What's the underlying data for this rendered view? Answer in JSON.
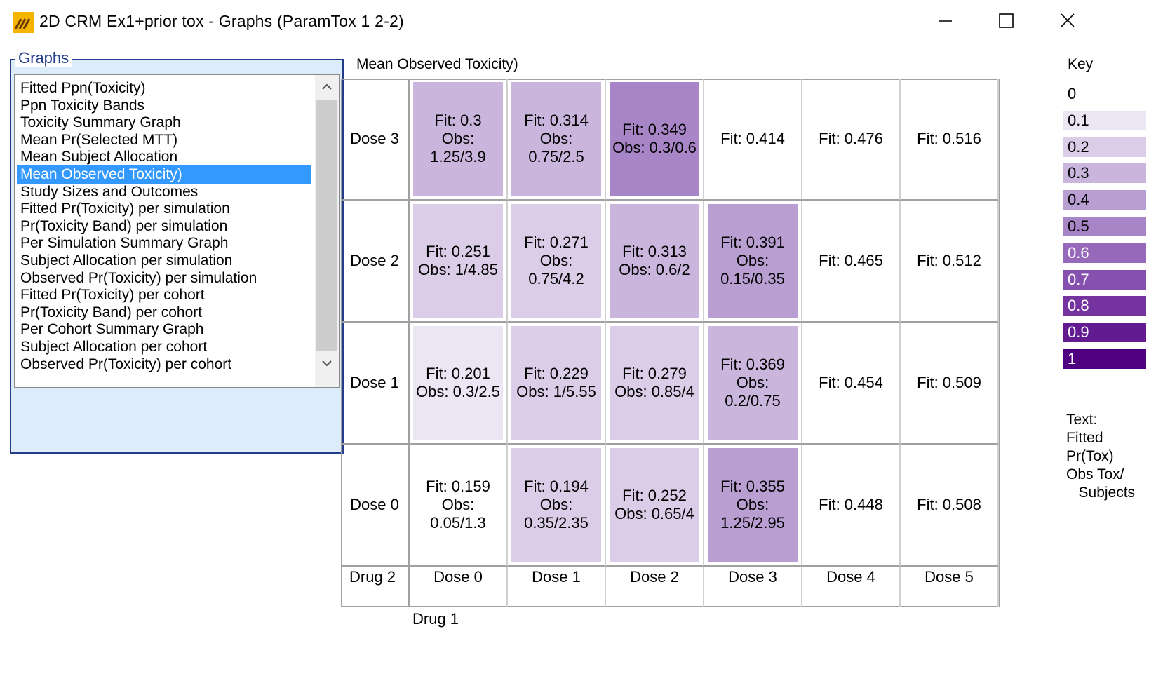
{
  "window": {
    "title": "2D CRM Ex1+prior tox - Graphs (ParamTox 1 2-2)",
    "minimize_icon": "minimize-icon",
    "maximize_icon": "maximize-icon",
    "close_icon": "close-icon"
  },
  "graphs_panel": {
    "label": "Graphs",
    "items": [
      "Fitted Ppn(Toxicity)",
      "Ppn Toxicity Bands",
      "Toxicity Summary Graph",
      "Mean Pr(Selected MTT)",
      "Mean Subject Allocation",
      "Mean Observed Toxicity)",
      "Study Sizes and Outcomes",
      "Fitted Pr(Toxicity) per simulation",
      "Pr(Toxicity Band) per simulation",
      "Per Simulation Summary Graph",
      "Subject Allocation per simulation",
      "Observed Pr(Toxicity) per simulation",
      "Fitted Pr(Toxicity) per cohort",
      "Pr(Toxicity Band) per cohort",
      "Per Cohort Summary Graph",
      "Subject Allocation per cohort",
      "Observed Pr(Toxicity) per cohort"
    ],
    "selected_index": 5
  },
  "chart_data": {
    "type": "heatmap",
    "title": "Mean Observed Toxicity)",
    "row_axis_label": "Drug 2",
    "column_axis_label": "Drug 1",
    "rows": [
      "Dose 3",
      "Dose 2",
      "Dose 1",
      "Dose 0"
    ],
    "columns": [
      "Dose 0",
      "Dose 1",
      "Dose 2",
      "Dose 3",
      "Dose 4",
      "Dose 5"
    ],
    "cells": [
      [
        {
          "value": 0.3,
          "text": "Fit: 0.3\nObs:\n1.25/3.9"
        },
        {
          "value": 0.3,
          "text": "Fit: 0.314\nObs:\n0.75/2.5"
        },
        {
          "value": 0.5,
          "text": "Fit: 0.349\nObs: 0.3/0.6"
        },
        {
          "value": null,
          "text": "Fit: 0.414"
        },
        {
          "value": null,
          "text": "Fit: 0.476"
        },
        {
          "value": null,
          "text": "Fit: 0.516"
        }
      ],
      [
        {
          "value": 0.2,
          "text": "Fit: 0.251\nObs: 1/4.85"
        },
        {
          "value": 0.18,
          "text": "Fit: 0.271\nObs:\n0.75/4.2"
        },
        {
          "value": 0.3,
          "text": "Fit: 0.313\nObs: 0.6/2"
        },
        {
          "value": 0.43,
          "text": "Fit: 0.391\nObs:\n0.15/0.35"
        },
        {
          "value": null,
          "text": "Fit: 0.465"
        },
        {
          "value": null,
          "text": "Fit: 0.512"
        }
      ],
      [
        {
          "value": 0.12,
          "text": "Fit: 0.201\nObs: 0.3/2.5"
        },
        {
          "value": 0.18,
          "text": "Fit: 0.229\nObs: 1/5.55"
        },
        {
          "value": 0.21,
          "text": "Fit: 0.279\nObs: 0.85/4"
        },
        {
          "value": 0.27,
          "text": "Fit: 0.369\nObs:\n0.2/0.75"
        },
        {
          "value": null,
          "text": "Fit: 0.454"
        },
        {
          "value": null,
          "text": "Fit: 0.509"
        }
      ],
      [
        {
          "value": 0.04,
          "text": "Fit: 0.159\nObs:\n0.05/1.3"
        },
        {
          "value": 0.15,
          "text": "Fit: 0.194\nObs:\n0.35/2.35"
        },
        {
          "value": 0.16,
          "text": "Fit: 0.252\nObs: 0.65/4"
        },
        {
          "value": 0.42,
          "text": "Fit: 0.355\nObs:\n1.25/2.95"
        },
        {
          "value": null,
          "text": "Fit: 0.448"
        },
        {
          "value": null,
          "text": "Fit: 0.508"
        }
      ]
    ],
    "legend": {
      "title": "Key",
      "items": [
        {
          "label": "0",
          "color": "#ffffff",
          "text_color": "#000000"
        },
        {
          "label": "0.1",
          "color": "#ece5f3",
          "text_color": "#000000"
        },
        {
          "label": "0.2",
          "color": "#dbcde8",
          "text_color": "#000000"
        },
        {
          "label": "0.3",
          "color": "#cab5dd",
          "text_color": "#000000"
        },
        {
          "label": "0.4",
          "color": "#b99ed2",
          "text_color": "#000000"
        },
        {
          "label": "0.5",
          "color": "#a785c6",
          "text_color": "#000000"
        },
        {
          "label": "0.6",
          "color": "#9769bb",
          "text_color": "#ffffff"
        },
        {
          "label": "0.7",
          "color": "#8650ae",
          "text_color": "#ffffff"
        },
        {
          "label": "0.8",
          "color": "#74339f",
          "text_color": "#ffffff"
        },
        {
          "label": "0.9",
          "color": "#621b90",
          "text_color": "#ffffff"
        },
        {
          "label": "1",
          "color": "#4f0080",
          "text_color": "#ffffff"
        }
      ]
    },
    "key_text": "Text:\nFitted\nPr(Tox)\nObs Tox/\n   Subjects"
  }
}
